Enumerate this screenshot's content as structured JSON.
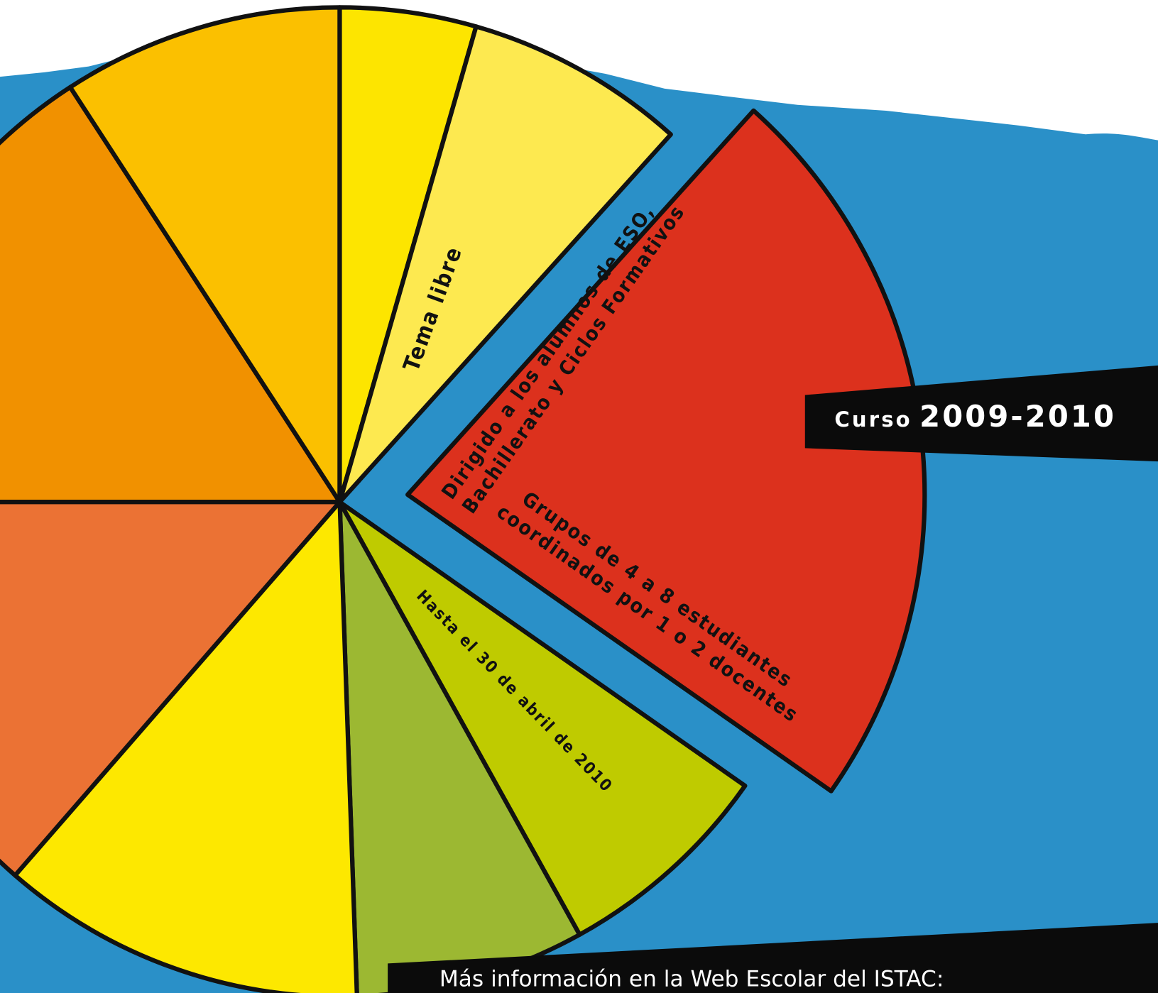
{
  "banner": {
    "prefix": "Curso",
    "course": "2009-2010"
  },
  "labels": {
    "theme": "Tema libre",
    "audience": [
      "Dirigido a los alumnos de ESO,",
      "Bachillerato y Ciclos Formativos"
    ],
    "groups": [
      "Grupos de 4 a 8 estudiantes",
      "coordinados por 1 o 2 docentes"
    ],
    "deadline": "Hasta el 30 de abril de 2010"
  },
  "footer": {
    "info": "Más información en la Web Escolar del ISTAC:"
  }
}
